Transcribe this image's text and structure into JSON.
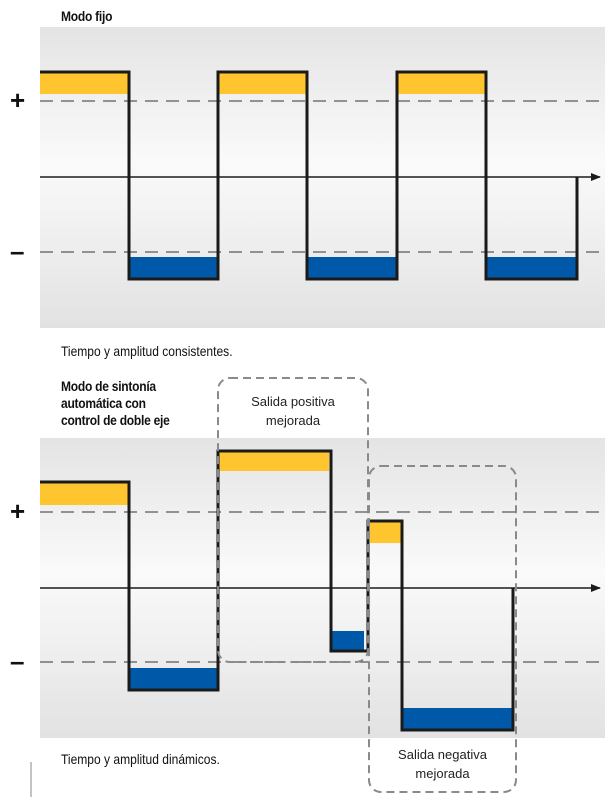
{
  "fixed_mode": {
    "title": "Modo fijo",
    "caption": "Tiempo y amplitud consistentes."
  },
  "auto_mode": {
    "title_lines": [
      "Modo de sintonía",
      "automática con",
      "control de doble eje"
    ],
    "caption": "Tiempo y amplitud dinámicos."
  },
  "axis_symbols": {
    "positive": "+",
    "negative": "–"
  },
  "callouts": {
    "positive": [
      "Salida positiva",
      "mejorada"
    ],
    "negative": [
      "Salida negativa",
      "mejorada"
    ]
  },
  "colors": {
    "positive_fill": "#ffc52e",
    "negative_fill": "#0059a8",
    "waveform": "#1a1a1a",
    "panel_top": "#e6e6e6",
    "panel_mid": "#fbfbfb",
    "callout_border": "#8a8a8a"
  }
}
